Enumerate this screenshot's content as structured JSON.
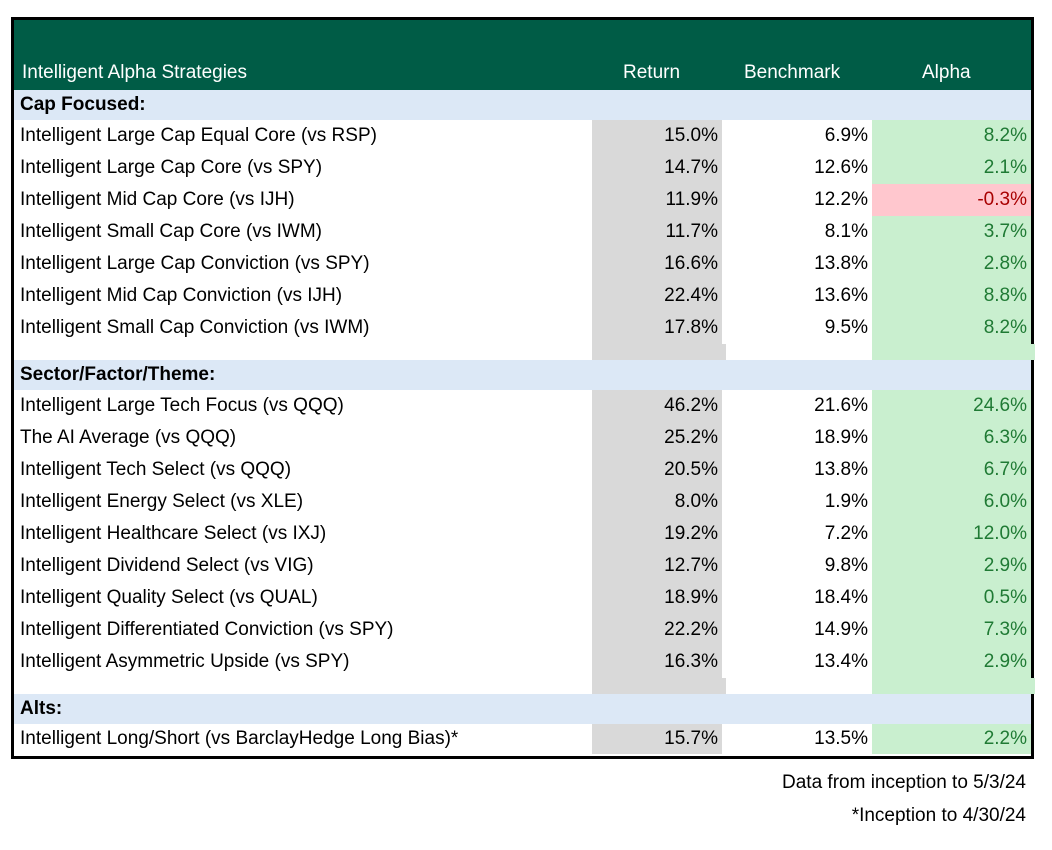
{
  "header": {
    "title": "Intelligent Alpha Strategies",
    "col_return": "Return",
    "col_benchmark": "Benchmark",
    "col_alpha": "Alpha"
  },
  "sections": [
    {
      "label": "Cap Focused:",
      "rows": [
        {
          "name": "Intelligent Large Cap Equal Core (vs RSP)",
          "return": "15.0%",
          "benchmark": "6.9%",
          "alpha": "8.2%"
        },
        {
          "name": "Intelligent Large Cap Core (vs SPY)",
          "return": "14.7%",
          "benchmark": "12.6%",
          "alpha": "2.1%"
        },
        {
          "name": "Intelligent Mid Cap Core (vs IJH)",
          "return": "11.9%",
          "benchmark": "12.2%",
          "alpha": "-0.3%"
        },
        {
          "name": "Intelligent Small Cap Core (vs IWM)",
          "return": "11.7%",
          "benchmark": "8.1%",
          "alpha": "3.7%"
        },
        {
          "name": "Intelligent Large Cap Conviction (vs SPY)",
          "return": "16.6%",
          "benchmark": "13.8%",
          "alpha": "2.8%"
        },
        {
          "name": "Intelligent Mid Cap Conviction (vs IJH)",
          "return": "22.4%",
          "benchmark": "13.6%",
          "alpha": "8.8%"
        },
        {
          "name": "Intelligent Small Cap Conviction (vs IWM)",
          "return": "17.8%",
          "benchmark": "9.5%",
          "alpha": "8.2%"
        }
      ]
    },
    {
      "label": "Sector/Factor/Theme:",
      "rows": [
        {
          "name": "Intelligent Large Tech Focus (vs QQQ)",
          "return": "46.2%",
          "benchmark": "21.6%",
          "alpha": "24.6%"
        },
        {
          "name": "The AI Average (vs QQQ)",
          "return": "25.2%",
          "benchmark": "18.9%",
          "alpha": "6.3%"
        },
        {
          "name": "Intelligent Tech Select (vs QQQ)",
          "return": "20.5%",
          "benchmark": "13.8%",
          "alpha": "6.7%"
        },
        {
          "name": "Intelligent Energy Select (vs XLE)",
          "return": "8.0%",
          "benchmark": "1.9%",
          "alpha": "6.0%"
        },
        {
          "name": "Intelligent Healthcare Select (vs IXJ)",
          "return": "19.2%",
          "benchmark": "7.2%",
          "alpha": "12.0%"
        },
        {
          "name": "Intelligent Dividend Select (vs VIG)",
          "return": "12.7%",
          "benchmark": "9.8%",
          "alpha": "2.9%"
        },
        {
          "name": "Intelligent Quality Select (vs QUAL)",
          "return": "18.9%",
          "benchmark": "18.4%",
          "alpha": "0.5%"
        },
        {
          "name": "Intelligent Differentiated Conviction (vs SPY)",
          "return": "22.2%",
          "benchmark": "14.9%",
          "alpha": "7.3%"
        },
        {
          "name": "Intelligent Asymmetric Upside (vs SPY)",
          "return": "16.3%",
          "benchmark": "13.4%",
          "alpha": "2.9%"
        }
      ]
    },
    {
      "label": "Alts:",
      "rows": [
        {
          "name": "Intelligent Long/Short (vs BarclayHedge Long Bias)*",
          "return": "15.7%",
          "benchmark": "13.5%",
          "alpha": "2.2%"
        }
      ]
    }
  ],
  "footnotes": {
    "data_range": "Data from inception to 5/3/24",
    "inception_note": "*Inception to 4/30/24"
  },
  "colors": {
    "header_bg": "#005c46",
    "section_bg": "#dce8f6",
    "return_bg": "#d9d9d9",
    "alpha_positive_bg": "#c9efcf",
    "alpha_positive_text": "#1f7a34",
    "alpha_negative_bg": "#ffc7ce",
    "alpha_negative_text": "#a80000"
  }
}
